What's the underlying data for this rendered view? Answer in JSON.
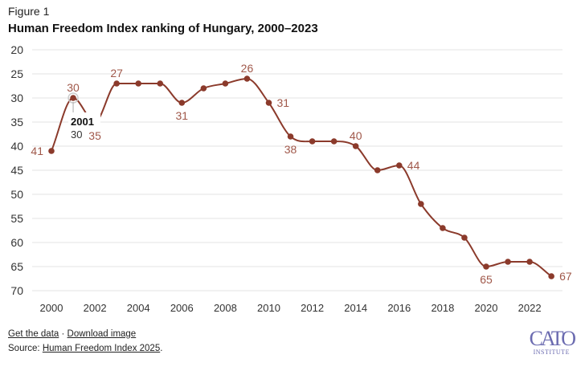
{
  "figure_label": "Figure 1",
  "colors": {
    "line": "#8b3a2b",
    "label": "#a0584a",
    "grid": "#e3e3e3"
  },
  "chart_data": {
    "type": "line",
    "title": "Human Freedom Index ranking of Hungary, 2000–2023",
    "xlabel": "",
    "ylabel": "",
    "x": [
      2000,
      2001,
      2002,
      2003,
      2004,
      2005,
      2006,
      2007,
      2008,
      2009,
      2010,
      2011,
      2012,
      2013,
      2014,
      2015,
      2016,
      2017,
      2018,
      2019,
      2020,
      2021,
      2022,
      2023
    ],
    "series": [
      {
        "name": "Hungary rank",
        "values": [
          41,
          30,
          35,
          27,
          27,
          27,
          31,
          28,
          27,
          26,
          31,
          38,
          39,
          39,
          40,
          45,
          44,
          52,
          57,
          59,
          65,
          64,
          64,
          67
        ]
      }
    ],
    "ylim": [
      70,
      20
    ],
    "y_inverted": true,
    "yticks": [
      "20",
      "25",
      "30",
      "35",
      "40",
      "45",
      "50",
      "55",
      "60",
      "65",
      "70"
    ],
    "xticks": [
      "2000",
      "2002",
      "2004",
      "2006",
      "2008",
      "2010",
      "2012",
      "2014",
      "2016",
      "2018",
      "2020",
      "2022"
    ],
    "data_labels": [
      {
        "year": 2000,
        "text": "41",
        "pos": "left"
      },
      {
        "year": 2001,
        "text": "30",
        "pos": "above"
      },
      {
        "year": 2002,
        "text": "35",
        "pos": "below"
      },
      {
        "year": 2003,
        "text": "27",
        "pos": "above"
      },
      {
        "year": 2006,
        "text": "31",
        "pos": "below"
      },
      {
        "year": 2009,
        "text": "26",
        "pos": "above"
      },
      {
        "year": 2010,
        "text": "31",
        "pos": "right"
      },
      {
        "year": 2011,
        "text": "38",
        "pos": "below"
      },
      {
        "year": 2014,
        "text": "40",
        "pos": "above"
      },
      {
        "year": 2016,
        "text": "44",
        "pos": "right"
      },
      {
        "year": 2020,
        "text": "65",
        "pos": "below"
      },
      {
        "year": 2023,
        "text": "67",
        "pos": "right"
      }
    ],
    "tooltip": {
      "year_text": "2001",
      "value_text": "30",
      "year": 2001
    },
    "grid": true
  },
  "footer": {
    "get_data": "Get the data",
    "separator": "·",
    "download": "Download image",
    "source_prefix": "Source: ",
    "source_link": "Human Freedom Index 2025",
    "source_suffix": "."
  },
  "logo": {
    "top": "CATO",
    "bottom": "INSTITUTE"
  }
}
